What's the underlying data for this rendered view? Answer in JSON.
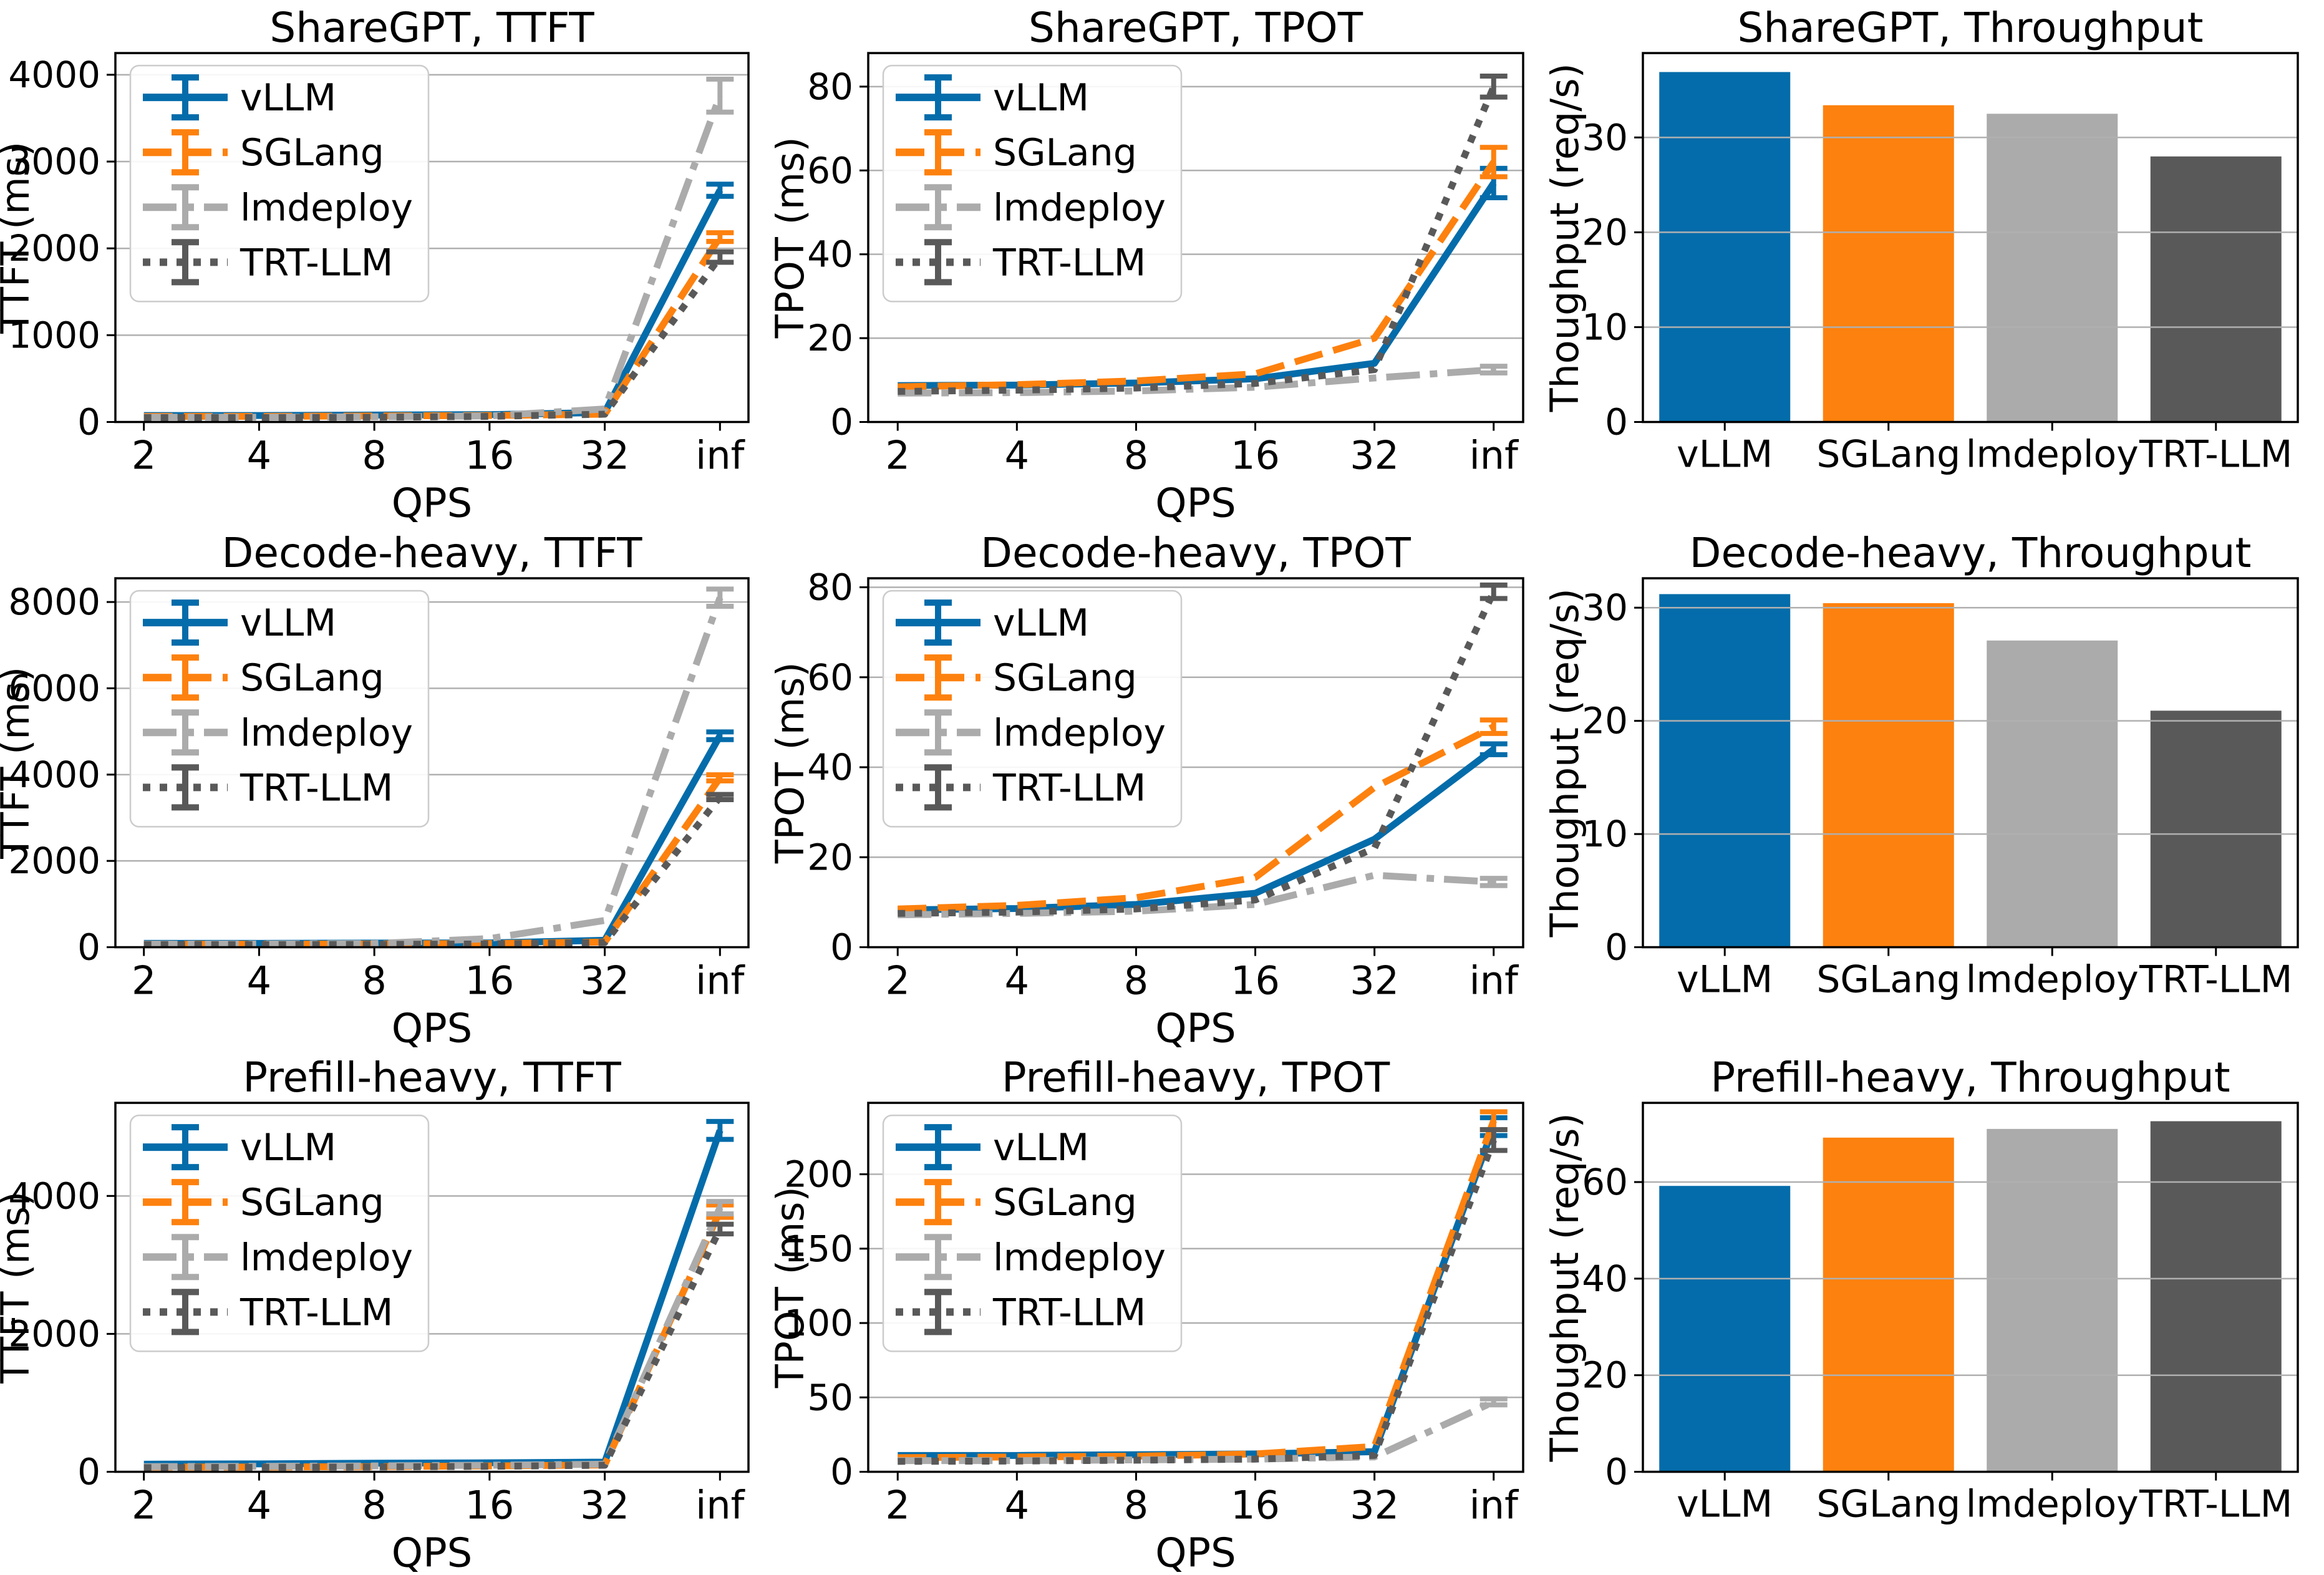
{
  "figure": {
    "background": "#ffffff"
  },
  "palette": {
    "vllm_blue": "#046caa",
    "sglang_orange": "#fd810e",
    "lmdeploy_gray": "#ababab",
    "trtllm_darkgray": "#595959",
    "gridline": "#b0b0b0"
  },
  "chart_data": [
    {
      "type": "line",
      "title": "ShareGPT, TTFT",
      "xlabel": "QPS",
      "ylabel": "TTFT (ms)",
      "ml": 185,
      "legend": true,
      "grid": true,
      "legend_position": "upper-left",
      "x_ticklabels": [
        "2",
        "4",
        "8",
        "16",
        "32",
        "inf"
      ],
      "yticks": [
        0,
        1000,
        2000,
        3000,
        4000
      ],
      "ylim": [
        0,
        4250
      ],
      "series": [
        {
          "name": "vLLM",
          "color": "#046caa",
          "dash": "solid",
          "values": [
            75,
            75,
            80,
            85,
            110,
            2670
          ],
          "yerr": [
            0,
            0,
            0,
            0,
            0,
            70
          ]
        },
        {
          "name": "SGLang",
          "color": "#fd810e",
          "dash": "dashed",
          "values": [
            65,
            65,
            70,
            75,
            90,
            2130
          ],
          "yerr": [
            0,
            0,
            0,
            0,
            0,
            50
          ]
        },
        {
          "name": "lmdeploy",
          "color": "#ababab",
          "dash": "dashdot",
          "values": [
            55,
            55,
            60,
            70,
            150,
            3760
          ],
          "yerr": [
            0,
            0,
            0,
            0,
            0,
            190
          ]
        },
        {
          "name": "TRT-LLM",
          "color": "#595959",
          "dash": "dotted",
          "values": [
            50,
            50,
            55,
            65,
            90,
            1900
          ],
          "yerr": [
            0,
            0,
            0,
            0,
            0,
            60
          ]
        }
      ]
    },
    {
      "type": "line",
      "title": "ShareGPT, TPOT",
      "xlabel": "QPS",
      "ylabel": "TPOT (ms)",
      "ml": 150,
      "legend": true,
      "grid": true,
      "legend_position": "upper-left",
      "x_ticklabels": [
        "2",
        "4",
        "8",
        "16",
        "32",
        "inf"
      ],
      "yticks": [
        0,
        20,
        40,
        60,
        80
      ],
      "ylim": [
        0,
        88
      ],
      "series": [
        {
          "name": "vLLM",
          "color": "#046caa",
          "dash": "solid",
          "values": [
            8.7,
            8.8,
            9.3,
            10.3,
            14,
            57
          ],
          "yerr": [
            0,
            0,
            0,
            0,
            0,
            3.5
          ]
        },
        {
          "name": "SGLang",
          "color": "#fd810e",
          "dash": "dashed",
          "values": [
            8.4,
            8.9,
            9.8,
            11.5,
            20,
            62
          ],
          "yerr": [
            0,
            0,
            0,
            0,
            0,
            3.5
          ]
        },
        {
          "name": "lmdeploy",
          "color": "#ababab",
          "dash": "dashdot",
          "values": [
            6.9,
            7.0,
            7.4,
            8.3,
            10.5,
            12.5
          ],
          "yerr": [
            0,
            0,
            0,
            0,
            0,
            0.8
          ]
        },
        {
          "name": "TRT-LLM",
          "color": "#595959",
          "dash": "dotted",
          "values": [
            7.3,
            7.6,
            8.1,
            9.2,
            12.5,
            80
          ],
          "yerr": [
            0,
            0,
            0,
            0,
            0,
            2.5
          ]
        }
      ]
    },
    {
      "type": "bar",
      "title": "ShareGPT, Throughput",
      "ylabel": "Thoughput (req/s)",
      "ml": 150,
      "grid": true,
      "categories": [
        "vLLM",
        "SGLang",
        "lmdeploy",
        "TRT-LLM"
      ],
      "values": [
        36.9,
        33.4,
        32.5,
        28.0
      ],
      "colors": [
        "#046caa",
        "#fd810e",
        "#ababab",
        "#595959"
      ],
      "yticks": [
        0,
        10,
        20,
        30
      ],
      "ylim": [
        0,
        38.9
      ]
    },
    {
      "type": "line",
      "title": "Decode-heavy, TTFT",
      "xlabel": "QPS",
      "ylabel": "TTFT (ms)",
      "ml": 185,
      "legend": true,
      "grid": true,
      "legend_position": "upper-left",
      "x_ticklabels": [
        "2",
        "4",
        "8",
        "16",
        "32",
        "inf"
      ],
      "yticks": [
        0,
        2000,
        4000,
        6000,
        8000
      ],
      "ylim": [
        0,
        8550
      ],
      "series": [
        {
          "name": "vLLM",
          "color": "#046caa",
          "dash": "solid",
          "values": [
            90,
            90,
            95,
            100,
            160,
            4900
          ],
          "yerr": [
            0,
            0,
            0,
            0,
            0,
            90
          ]
        },
        {
          "name": "SGLang",
          "color": "#fd810e",
          "dash": "dashed",
          "values": [
            70,
            70,
            75,
            85,
            120,
            3925
          ],
          "yerr": [
            0,
            0,
            0,
            0,
            0,
            70
          ]
        },
        {
          "name": "lmdeploy",
          "color": "#ababab",
          "dash": "dashdot",
          "values": [
            70,
            75,
            85,
            200,
            620,
            8100
          ],
          "yerr": [
            0,
            0,
            0,
            0,
            0,
            200
          ]
        },
        {
          "name": "TRT-LLM",
          "color": "#595959",
          "dash": "dotted",
          "values": [
            60,
            60,
            65,
            75,
            110,
            3480
          ],
          "yerr": [
            0,
            0,
            0,
            0,
            0,
            60
          ]
        }
      ]
    },
    {
      "type": "line",
      "title": "Decode-heavy, TPOT",
      "xlabel": "QPS",
      "ylabel": "TPOT (ms)",
      "ml": 150,
      "legend": true,
      "grid": true,
      "legend_position": "upper-left",
      "x_ticklabels": [
        "2",
        "4",
        "8",
        "16",
        "32",
        "inf"
      ],
      "yticks": [
        0,
        20,
        40,
        60,
        80
      ],
      "ylim": [
        0,
        82
      ],
      "series": [
        {
          "name": "vLLM",
          "color": "#046caa",
          "dash": "solid",
          "values": [
            8.3,
            8.6,
            9.5,
            12,
            24,
            44
          ],
          "yerr": [
            0,
            0,
            0,
            0,
            0,
            1.2
          ]
        },
        {
          "name": "SGLang",
          "color": "#fd810e",
          "dash": "dashed",
          "values": [
            8.5,
            9.3,
            11,
            15.5,
            35.5,
            49
          ],
          "yerr": [
            0,
            0,
            0,
            0,
            0,
            1.5
          ]
        },
        {
          "name": "lmdeploy",
          "color": "#ababab",
          "dash": "dashdot",
          "values": [
            7.2,
            7.5,
            8,
            9.5,
            16,
            14.5
          ],
          "yerr": [
            0,
            0,
            0,
            0,
            0,
            0.8
          ]
        },
        {
          "name": "TRT-LLM",
          "color": "#595959",
          "dash": "dotted",
          "values": [
            7.5,
            7.8,
            8.5,
            10.5,
            22,
            79
          ],
          "yerr": [
            0,
            0,
            0,
            0,
            0,
            1.5
          ]
        }
      ]
    },
    {
      "type": "bar",
      "title": "Decode-heavy, Throughput",
      "ylabel": "Thoughput (req/s)",
      "ml": 150,
      "grid": true,
      "categories": [
        "vLLM",
        "SGLang",
        "lmdeploy",
        "TRT-LLM"
      ],
      "values": [
        31.2,
        30.4,
        27.1,
        20.9
      ],
      "colors": [
        "#046caa",
        "#fd810e",
        "#ababab",
        "#595959"
      ],
      "yticks": [
        0,
        10,
        20,
        30
      ],
      "ylim": [
        0,
        32.6
      ]
    },
    {
      "type": "line",
      "title": "Prefill-heavy, TTFT",
      "xlabel": "QPS",
      "ylabel": "TTFT (ms)",
      "ml": 185,
      "legend": true,
      "grid": true,
      "legend_position": "upper-left",
      "x_ticklabels": [
        "2",
        "4",
        "8",
        "16",
        "32",
        "inf"
      ],
      "yticks": [
        0,
        2000,
        4000
      ],
      "ylim": [
        0,
        5350
      ],
      "series": [
        {
          "name": "vLLM",
          "color": "#046caa",
          "dash": "solid",
          "values": [
            110,
            115,
            125,
            130,
            140,
            4950
          ],
          "yerr": [
            0,
            0,
            0,
            0,
            0,
            130
          ]
        },
        {
          "name": "SGLang",
          "color": "#fd810e",
          "dash": "dashed",
          "values": [
            70,
            70,
            75,
            85,
            100,
            3780
          ],
          "yerr": [
            0,
            0,
            0,
            0,
            0,
            90
          ]
        },
        {
          "name": "lmdeploy",
          "color": "#ababab",
          "dash": "dashdot",
          "values": [
            75,
            80,
            85,
            95,
            110,
            3830
          ],
          "yerr": [
            0,
            0,
            0,
            0,
            0,
            90
          ]
        },
        {
          "name": "TRT-LLM",
          "color": "#595959",
          "dash": "dotted",
          "values": [
            60,
            65,
            70,
            80,
            95,
            3520
          ],
          "yerr": [
            0,
            0,
            0,
            0,
            0,
            70
          ]
        }
      ]
    },
    {
      "type": "line",
      "title": "Prefill-heavy, TPOT",
      "xlabel": "QPS",
      "ylabel": "TPOT (ms)",
      "ml": 150,
      "legend": true,
      "grid": true,
      "legend_position": "upper-left",
      "x_ticklabels": [
        "2",
        "4",
        "8",
        "16",
        "32",
        "inf"
      ],
      "yticks": [
        0,
        50,
        100,
        150,
        200
      ],
      "ylim": [
        0,
        248
      ],
      "series": [
        {
          "name": "vLLM",
          "color": "#046caa",
          "dash": "solid",
          "values": [
            11,
            11,
            11.5,
            12,
            13.5,
            232
          ],
          "yerr": [
            0,
            0,
            0,
            0,
            0,
            6
          ]
        },
        {
          "name": "SGLang",
          "color": "#fd810e",
          "dash": "dashed",
          "values": [
            9.5,
            10,
            10.5,
            12,
            17,
            236
          ],
          "yerr": [
            0,
            0,
            0,
            0,
            0,
            6
          ]
        },
        {
          "name": "lmdeploy",
          "color": "#ababab",
          "dash": "dashdot",
          "values": [
            7.5,
            7.5,
            8,
            8.5,
            10,
            47
          ],
          "yerr": [
            0,
            0,
            0,
            0,
            0,
            2
          ]
        },
        {
          "name": "TRT-LLM",
          "color": "#595959",
          "dash": "dotted",
          "values": [
            7,
            7.2,
            7.8,
            8.5,
            11,
            223
          ],
          "yerr": [
            0,
            0,
            0,
            0,
            0,
            7
          ]
        }
      ]
    },
    {
      "type": "bar",
      "title": "Prefill-heavy, Throughput",
      "ylabel": "Thoughput (req/s)",
      "ml": 150,
      "grid": true,
      "categories": [
        "vLLM",
        "SGLang",
        "lmdeploy",
        "TRT-LLM"
      ],
      "values": [
        59.2,
        69.2,
        71.0,
        72.6
      ],
      "colors": [
        "#046caa",
        "#fd810e",
        "#ababab",
        "#595959"
      ],
      "yticks": [
        0,
        20,
        40,
        60
      ],
      "ylim": [
        0,
        76.4
      ]
    }
  ]
}
